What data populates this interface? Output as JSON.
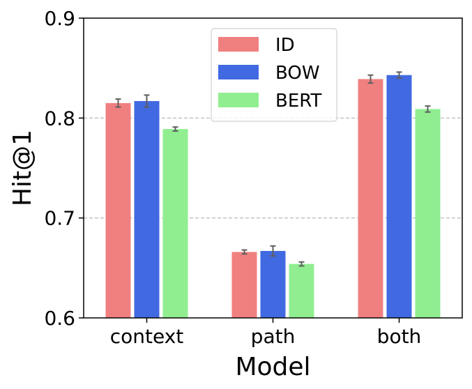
{
  "chart_data": {
    "type": "bar",
    "xlabel": "Model",
    "ylabel": "Hit@1",
    "categories": [
      "context",
      "path",
      "both"
    ],
    "ylim": [
      0.6,
      0.9
    ],
    "yticks": [
      "0.6",
      "0.7",
      "0.8",
      "0.9"
    ],
    "grid": "horizontal dashed at 0.7 and 0.8",
    "legend_position": "top-center",
    "series": [
      {
        "name": "ID",
        "color": "#f08080",
        "values": [
          0.815,
          0.666,
          0.839
        ],
        "errors": [
          0.004,
          0.002,
          0.004
        ]
      },
      {
        "name": "BOW",
        "color": "#4169e1",
        "values": [
          0.817,
          0.667,
          0.843
        ],
        "errors": [
          0.006,
          0.005,
          0.003
        ]
      },
      {
        "name": "BERT",
        "color": "#90ee90",
        "values": [
          0.789,
          0.654,
          0.809
        ],
        "errors": [
          0.002,
          0.002,
          0.003
        ]
      }
    ]
  }
}
